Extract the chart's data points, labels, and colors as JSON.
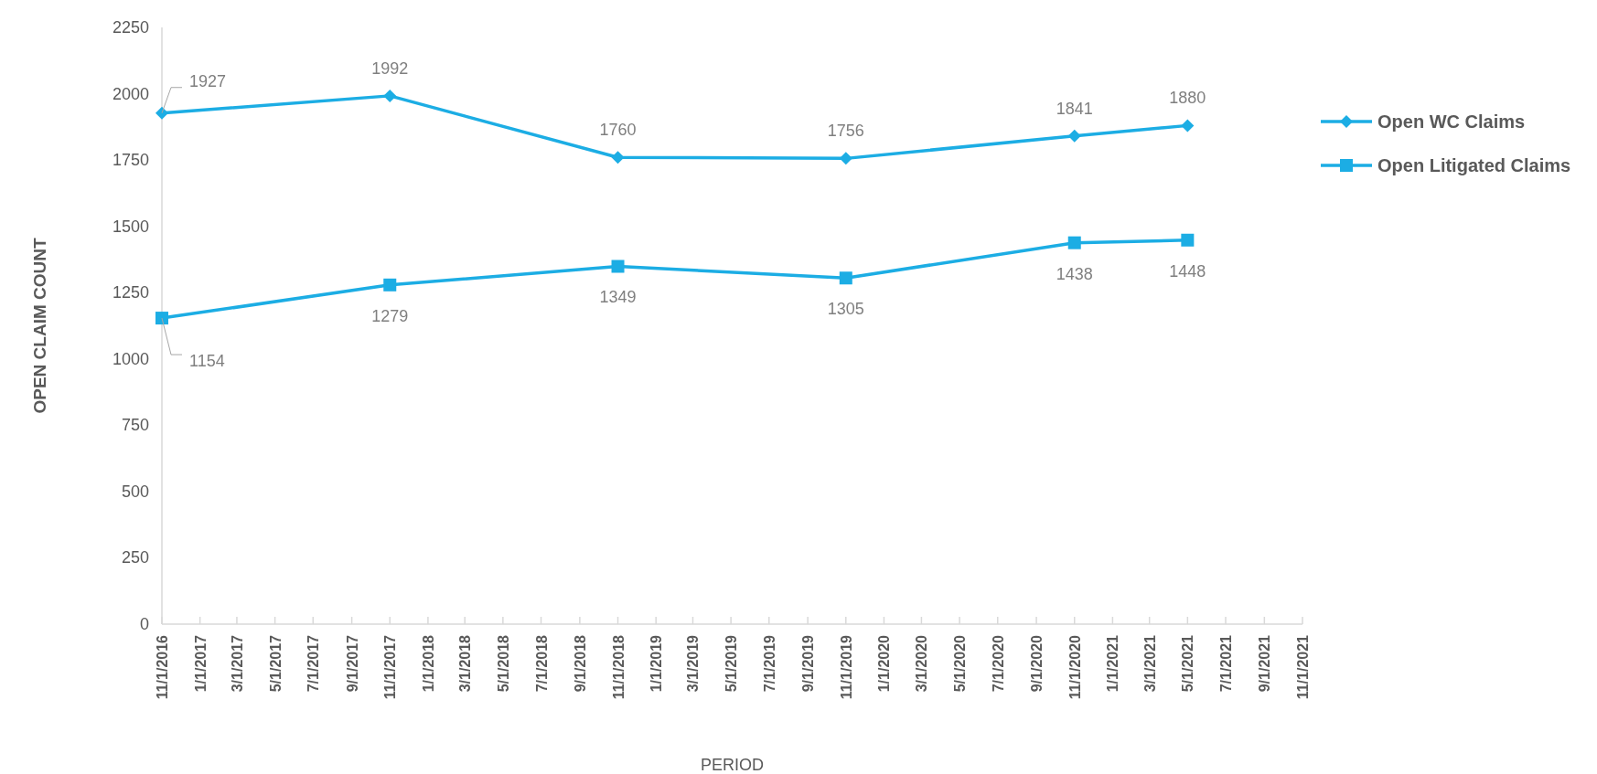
{
  "chart_data": {
    "type": "line",
    "xlabel": "PERIOD",
    "ylabel": "OPEN CLAIM COUNT",
    "x": [
      "2016-11-01",
      "2017-11-01",
      "2018-11-01",
      "2019-11-01",
      "2020-11-01",
      "2021-05-01"
    ],
    "series": [
      {
        "name": "Open WC Claims",
        "color": "#1cade4",
        "marker": "diamond",
        "values": [
          1927,
          1992,
          1760,
          1756,
          1841,
          1880
        ]
      },
      {
        "name": "Open Litigated Claims",
        "color": "#1cade4",
        "marker": "square",
        "values": [
          1154,
          1279,
          1349,
          1305,
          1438,
          1448
        ]
      }
    ],
    "xlim": [
      "2016-11-01",
      "2021-11-01"
    ],
    "xticks": [
      {
        "value": "2016-11-01",
        "label": "11/1/2016"
      },
      {
        "value": "2017-01-01",
        "label": "1/1/2017"
      },
      {
        "value": "2017-03-01",
        "label": "3/1/2017"
      },
      {
        "value": "2017-05-01",
        "label": "5/1/2017"
      },
      {
        "value": "2017-07-01",
        "label": "7/1/2017"
      },
      {
        "value": "2017-09-01",
        "label": "9/1/2017"
      },
      {
        "value": "2017-11-01",
        "label": "11/1/2017"
      },
      {
        "value": "2018-01-01",
        "label": "1/1/2018"
      },
      {
        "value": "2018-03-01",
        "label": "3/1/2018"
      },
      {
        "value": "2018-05-01",
        "label": "5/1/2018"
      },
      {
        "value": "2018-07-01",
        "label": "7/1/2018"
      },
      {
        "value": "2018-09-01",
        "label": "9/1/2018"
      },
      {
        "value": "2018-11-01",
        "label": "11/1/2018"
      },
      {
        "value": "2019-01-01",
        "label": "1/1/2019"
      },
      {
        "value": "2019-03-01",
        "label": "3/1/2019"
      },
      {
        "value": "2019-05-01",
        "label": "5/1/2019"
      },
      {
        "value": "2019-07-01",
        "label": "7/1/2019"
      },
      {
        "value": "2019-09-01",
        "label": "9/1/2019"
      },
      {
        "value": "2019-11-01",
        "label": "11/1/2019"
      },
      {
        "value": "2020-01-01",
        "label": "1/1/2020"
      },
      {
        "value": "2020-03-01",
        "label": "3/1/2020"
      },
      {
        "value": "2020-05-01",
        "label": "5/1/2020"
      },
      {
        "value": "2020-07-01",
        "label": "7/1/2020"
      },
      {
        "value": "2020-09-01",
        "label": "9/1/2020"
      },
      {
        "value": "2020-11-01",
        "label": "11/1/2020"
      },
      {
        "value": "2021-01-01",
        "label": "1/1/2021"
      },
      {
        "value": "2021-03-01",
        "label": "3/1/2021"
      },
      {
        "value": "2021-05-01",
        "label": "5/1/2021"
      },
      {
        "value": "2021-07-01",
        "label": "7/1/2021"
      },
      {
        "value": "2021-09-01",
        "label": "9/1/2021"
      },
      {
        "value": "2021-11-01",
        "label": "11/1/2021"
      }
    ],
    "ylim": [
      0,
      2250
    ],
    "yticks": [
      0,
      250,
      500,
      750,
      1000,
      1250,
      1500,
      1750,
      2000,
      2250
    ],
    "grid": false,
    "legend": "right",
    "data_labels": true
  }
}
